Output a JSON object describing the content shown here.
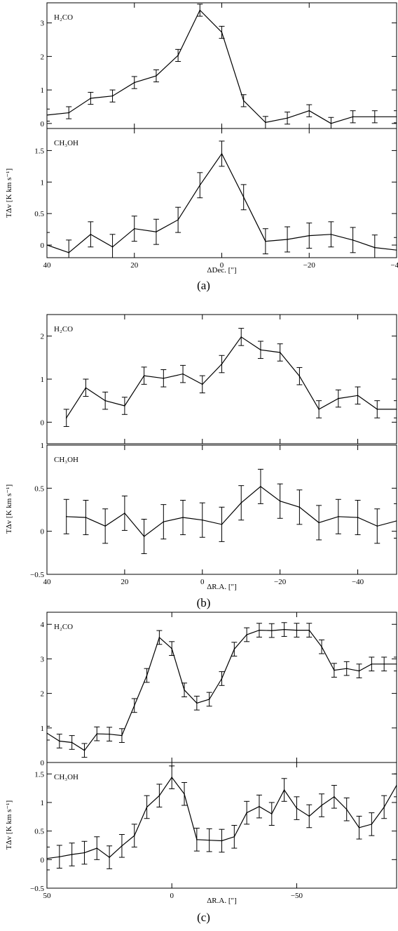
{
  "chart_data": [
    {
      "type": "line",
      "caption": "(a)",
      "xlabel": "ΔDec. [″]",
      "ylabel": "TΔv [K km s⁻¹]",
      "xlim": [
        40,
        -40
      ],
      "xticks": [
        40,
        20,
        0,
        -20,
        -40
      ],
      "panels": [
        {
          "species": "H₂CO",
          "ylim": [
            -0.15,
            3.6
          ],
          "yticks": [
            0,
            1,
            2,
            3
          ],
          "x": [
            40,
            35,
            30,
            25,
            20,
            15,
            10,
            5,
            0,
            -5,
            -10,
            -15,
            -20,
            -25,
            -30,
            -35,
            -40
          ],
          "y": [
            0.25,
            0.32,
            0.75,
            0.82,
            1.22,
            1.42,
            2.03,
            3.38,
            2.72,
            0.68,
            0.03,
            0.16,
            0.38,
            0.0,
            0.2,
            0.2,
            0.2
          ],
          "err": [
            0.18,
            0.18,
            0.18,
            0.18,
            0.18,
            0.18,
            0.18,
            0.18,
            0.18,
            0.18,
            0.18,
            0.18,
            0.18,
            0.18,
            0.18,
            0.18,
            0.18
          ]
        },
        {
          "species": "CH₃OH",
          "ylim": [
            -0.2,
            1.85
          ],
          "yticks": [
            0,
            0.5,
            1,
            1.5
          ],
          "x": [
            40,
            35,
            30,
            25,
            20,
            15,
            10,
            5,
            0,
            -5,
            -10,
            -15,
            -20,
            -25,
            -30,
            -35,
            -40
          ],
          "y": [
            0.0,
            -0.12,
            0.17,
            -0.03,
            0.26,
            0.21,
            0.4,
            0.95,
            1.45,
            0.76,
            0.06,
            0.09,
            0.15,
            0.17,
            0.08,
            -0.04,
            -0.08
          ],
          "err": [
            0.2,
            0.2,
            0.2,
            0.2,
            0.2,
            0.2,
            0.2,
            0.2,
            0.2,
            0.2,
            0.2,
            0.2,
            0.2,
            0.2,
            0.2,
            0.2,
            0.2
          ]
        }
      ]
    },
    {
      "type": "line",
      "caption": "(b)",
      "xlabel": "ΔR.A. [″]",
      "ylabel": "TΔv [K km s⁻¹]",
      "xlim": [
        40,
        -50
      ],
      "xticks": [
        40,
        20,
        0,
        -20,
        -40
      ],
      "panels": [
        {
          "species": "H₂CO",
          "ylim": [
            -0.5,
            2.5
          ],
          "yticks": [
            0,
            1,
            2
          ],
          "x": [
            35,
            30,
            25,
            20,
            15,
            10,
            5,
            0,
            -5,
            -10,
            -15,
            -20,
            -25,
            -30,
            -35,
            -40,
            -45,
            -50
          ],
          "y": [
            0.1,
            0.8,
            0.5,
            0.38,
            1.08,
            1.02,
            1.12,
            0.88,
            1.35,
            1.98,
            1.68,
            1.62,
            1.07,
            0.3,
            0.55,
            0.62,
            0.3,
            0.3
          ],
          "err": [
            0.2,
            0.2,
            0.2,
            0.2,
            0.2,
            0.2,
            0.2,
            0.2,
            0.2,
            0.2,
            0.2,
            0.2,
            0.2,
            0.2,
            0.2,
            0.2,
            0.2,
            0.2
          ]
        },
        {
          "species": "CH₃OH",
          "ylim": [
            -0.5,
            1.0
          ],
          "yticks": [
            -0.5,
            0,
            0.5,
            1
          ],
          "x": [
            35,
            30,
            25,
            20,
            15,
            10,
            5,
            0,
            -5,
            -10,
            -15,
            -20,
            -25,
            -30,
            -35,
            -40,
            -45,
            -50
          ],
          "y": [
            0.17,
            0.16,
            0.06,
            0.21,
            -0.06,
            0.11,
            0.16,
            0.13,
            0.08,
            0.33,
            0.52,
            0.35,
            0.28,
            0.1,
            0.17,
            0.16,
            0.06,
            0.12
          ],
          "err": [
            0.2,
            0.2,
            0.2,
            0.2,
            0.2,
            0.2,
            0.2,
            0.2,
            0.2,
            0.2,
            0.2,
            0.2,
            0.2,
            0.2,
            0.2,
            0.2,
            0.2,
            0.2
          ]
        }
      ]
    },
    {
      "type": "line",
      "caption": "(c)",
      "xlabel": "ΔR.A. [″]",
      "ylabel": "TΔv [K km s⁻¹]",
      "xlim": [
        50,
        -90
      ],
      "xticks": [
        50,
        0,
        -50
      ],
      "panels": [
        {
          "species": "H₂CO",
          "ylim": [
            0,
            4.35
          ],
          "yticks": [
            0,
            1,
            2,
            3,
            4
          ],
          "x": [
            50,
            45,
            40,
            35,
            30,
            25,
            20,
            15,
            10,
            5,
            0,
            -5,
            -10,
            -15,
            -20,
            -25,
            -30,
            -35,
            -40,
            -45,
            -50,
            -55,
            -60,
            -65,
            -70,
            -75,
            -80,
            -85,
            -90
          ],
          "y": [
            0.85,
            0.62,
            0.58,
            0.35,
            0.83,
            0.82,
            0.78,
            1.65,
            2.52,
            3.62,
            3.3,
            2.1,
            1.72,
            1.83,
            2.43,
            3.28,
            3.7,
            3.83,
            3.82,
            3.85,
            3.83,
            3.83,
            3.35,
            2.67,
            2.72,
            2.65,
            2.85,
            2.85,
            2.85
          ],
          "err": [
            0.2,
            0.2,
            0.2,
            0.2,
            0.2,
            0.2,
            0.2,
            0.2,
            0.2,
            0.2,
            0.2,
            0.2,
            0.2,
            0.2,
            0.2,
            0.2,
            0.2,
            0.2,
            0.2,
            0.2,
            0.2,
            0.2,
            0.2,
            0.2,
            0.2,
            0.2,
            0.2,
            0.2,
            0.2
          ]
        },
        {
          "species": "CH₃OH",
          "ylim": [
            -0.5,
            1.7
          ],
          "yticks": [
            -0.5,
            0,
            0.5,
            1,
            1.5
          ],
          "x": [
            50,
            45,
            40,
            35,
            30,
            25,
            20,
            15,
            10,
            5,
            0,
            -5,
            -10,
            -15,
            -20,
            -25,
            -30,
            -35,
            -40,
            -45,
            -50,
            -55,
            -60,
            -65,
            -70,
            -75,
            -80,
            -85,
            -90
          ],
          "y": [
            0.02,
            0.05,
            0.09,
            0.12,
            0.2,
            0.04,
            0.24,
            0.42,
            0.92,
            1.12,
            1.44,
            1.15,
            0.35,
            0.34,
            0.33,
            0.4,
            0.82,
            0.93,
            0.8,
            1.22,
            0.9,
            0.76,
            0.95,
            1.1,
            0.88,
            0.56,
            0.62,
            0.92,
            1.3
          ],
          "err": [
            0.2,
            0.2,
            0.2,
            0.2,
            0.2,
            0.2,
            0.2,
            0.2,
            0.2,
            0.2,
            0.2,
            0.2,
            0.2,
            0.2,
            0.2,
            0.2,
            0.2,
            0.2,
            0.2,
            0.2,
            0.2,
            0.2,
            0.2,
            0.2,
            0.2,
            0.2,
            0.2,
            0.2,
            0.2
          ]
        }
      ]
    }
  ]
}
